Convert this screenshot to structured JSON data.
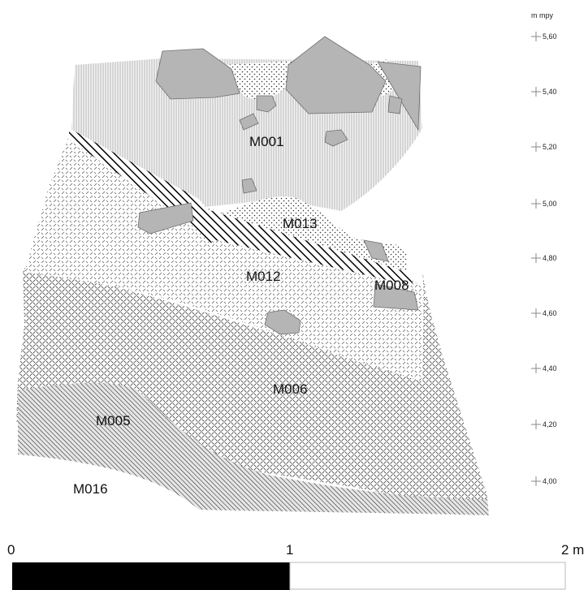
{
  "section": {
    "layers": [
      {
        "id": "M001",
        "label": "M001",
        "fill": "vertical-lines"
      },
      {
        "id": "M013",
        "label": "M013",
        "fill": "dots"
      },
      {
        "id": "M012",
        "label": "M012",
        "fill": "fine-dashes"
      },
      {
        "id": "M008",
        "label": "M008",
        "fill": "bold-hatch"
      },
      {
        "id": "M006",
        "label": "M006",
        "fill": "dense-dashes"
      },
      {
        "id": "M005",
        "label": "M005",
        "fill": "diagonal-hatch"
      },
      {
        "id": "M016",
        "label": "M016",
        "fill": "none"
      }
    ],
    "stone_color": "#b5b5b5"
  },
  "elevation_axis": {
    "unit": "m mpy",
    "ticks": [
      "5,60",
      "5,40",
      "5,20",
      "5,00",
      "4,80",
      "4,60",
      "4,40",
      "4,20",
      "4,00"
    ]
  },
  "scale_bar": {
    "labels": [
      "0",
      "1",
      "2 m"
    ],
    "colors": {
      "first_half": "#000000",
      "second_half": "#ffffff"
    }
  }
}
